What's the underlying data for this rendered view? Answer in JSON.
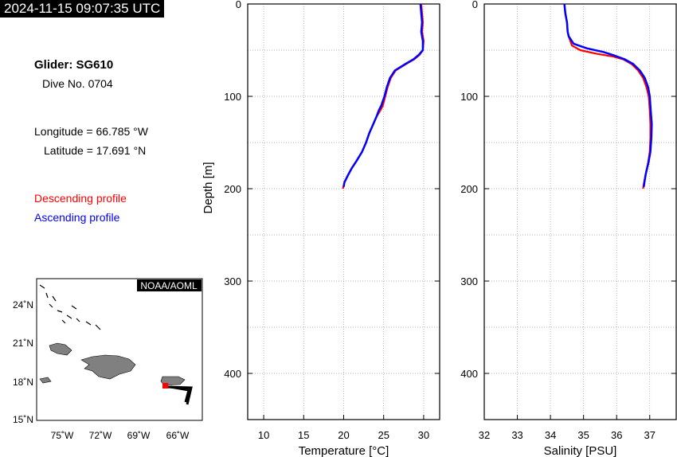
{
  "timestamp": "2024-11-15 09:07:35 UTC",
  "glider": "Glider: SG610",
  "dive": "Dive No. 0704",
  "longitude": "Longitude = 66.785 °W",
  "latitude": "Latitude = 17.691 °N",
  "legend": {
    "descending": "Descending profile",
    "ascending": "Ascending profile",
    "descending_color": "#ff0000",
    "ascending_color": "#0000ff"
  },
  "map": {
    "credit": "NOAA/AOML",
    "lat_ticks": [
      "24˚N",
      "21˚N",
      "18˚N",
      "15˚N"
    ],
    "lon_ticks": [
      "75˚W",
      "72˚W",
      "69˚W",
      "66˚W"
    ],
    "land_color": "#808080"
  },
  "chart_data": [
    {
      "type": "line",
      "xlabel": "Temperature [°C]",
      "ylabel": "Depth [m]",
      "xlim": [
        8,
        32
      ],
      "ylim": [
        450,
        0
      ],
      "xticks": [
        10,
        15,
        20,
        25,
        30
      ],
      "yticks": [
        0,
        100,
        200,
        300,
        400
      ],
      "grid": true,
      "series": [
        {
          "name": "Descending profile",
          "color": "#ff0000",
          "x": [
            29.7,
            29.8,
            29.9,
            29.8,
            30.0,
            29.9,
            29.5,
            28.8,
            27.8,
            26.5,
            25.9,
            25.5,
            25.2,
            24.9,
            24.6,
            24.1,
            23.7,
            23.2,
            22.8,
            22.3,
            21.6,
            21.0,
            20.5,
            20.1,
            19.9
          ],
          "y": [
            0,
            10,
            20,
            30,
            40,
            50,
            55,
            60,
            65,
            72,
            80,
            90,
            100,
            110,
            115,
            122,
            130,
            140,
            150,
            160,
            170,
            178,
            186,
            193,
            200
          ]
        },
        {
          "name": "Ascending profile",
          "color": "#0000ff",
          "x": [
            29.6,
            29.7,
            29.8,
            29.7,
            29.9,
            29.9,
            29.4,
            28.7,
            27.7,
            26.4,
            25.8,
            25.4,
            25.1,
            24.7,
            24.4,
            24.1,
            23.7,
            23.2,
            22.8,
            22.3,
            21.6,
            21.0,
            20.5,
            20.1,
            20.0
          ],
          "y": [
            0,
            10,
            20,
            30,
            40,
            50,
            55,
            60,
            65,
            72,
            80,
            90,
            100,
            110,
            115,
            122,
            130,
            140,
            150,
            160,
            170,
            178,
            186,
            193,
            198
          ]
        }
      ]
    },
    {
      "type": "line",
      "xlabel": "Salinity [PSU]",
      "ylabel": "",
      "xlim": [
        32,
        37.8
      ],
      "ylim": [
        450,
        0
      ],
      "xticks": [
        32,
        33,
        34,
        35,
        36,
        37
      ],
      "yticks": [
        0,
        100,
        200,
        300,
        400
      ],
      "grid": true,
      "series": [
        {
          "name": "Descending profile",
          "color": "#ff0000",
          "x": [
            34.42,
            34.45,
            34.5,
            34.52,
            34.55,
            34.65,
            34.9,
            35.4,
            35.9,
            36.2,
            36.45,
            36.65,
            36.8,
            36.9,
            36.97,
            37.0,
            37.02,
            37.02,
            37.0,
            36.95,
            36.88,
            36.83,
            36.8
          ],
          "y": [
            0,
            10,
            20,
            30,
            35,
            45,
            50,
            54,
            57,
            60,
            65,
            72,
            80,
            90,
            100,
            115,
            130,
            145,
            160,
            172,
            184,
            193,
            200
          ]
        },
        {
          "name": "Ascending profile",
          "color": "#0000ff",
          "x": [
            34.42,
            34.45,
            34.5,
            34.52,
            34.55,
            34.7,
            35.1,
            35.6,
            35.95,
            36.25,
            36.5,
            36.7,
            36.85,
            36.95,
            37.0,
            37.03,
            37.06,
            37.05,
            37.02,
            36.96,
            36.88,
            36.84,
            36.82
          ],
          "y": [
            0,
            10,
            20,
            30,
            35,
            43,
            48,
            52,
            56,
            60,
            65,
            72,
            80,
            90,
            100,
            115,
            130,
            145,
            160,
            172,
            184,
            193,
            198
          ]
        }
      ]
    }
  ]
}
